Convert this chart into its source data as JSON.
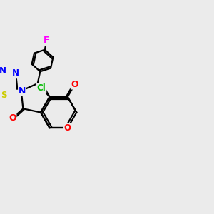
{
  "bg_color": "#ebebeb",
  "bond_color": "#000000",
  "bond_width": 1.6,
  "atom_colors": {
    "O": "#ff0000",
    "N": "#0000ff",
    "S": "#cccc00",
    "Cl": "#00bb00",
    "F": "#ff00ff",
    "C": "#000000"
  },
  "bg_hex": "#ebebeb"
}
